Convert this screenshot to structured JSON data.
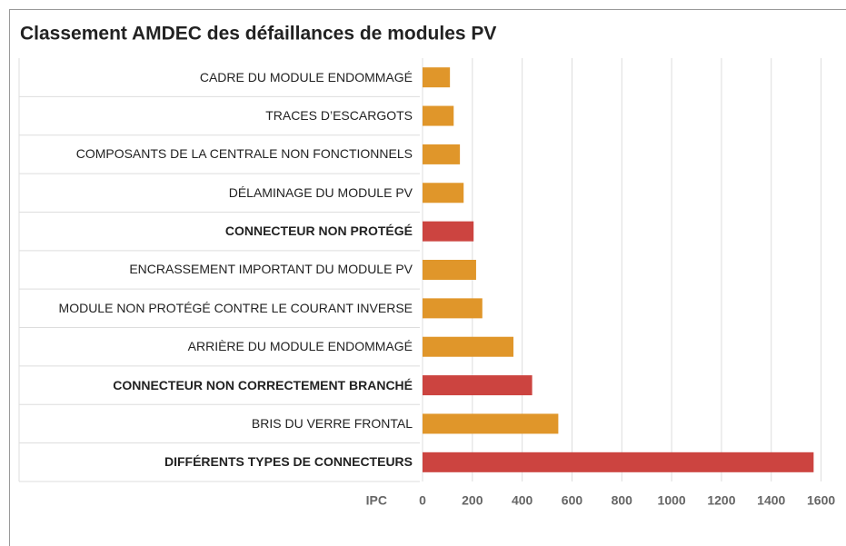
{
  "chart_data": {
    "type": "barh",
    "title": "Classement AMDEC des défaillances de modules PV",
    "categories": [
      "CADRE DU MODULE ENDOMMAGÉ",
      "TRACES D’ESCARGOTS",
      "COMPOSANTS DE LA CENTRALE NON FONCTIONNELS",
      "DÉLAMINAGE DU MODULE PV",
      "CONNECTEUR NON PROTÉGÉ",
      "ENCRASSEMENT IMPORTANT DU MODULE PV",
      "MODULE NON PROTÉGÉ CONTRE LE COURANT INVERSE",
      "ARRIÈRE DU MODULE ENDOMMAGÉ",
      "CONNECTEUR NON CORRECTEMENT BRANCHÉ",
      "BRIS DU VERRE FRONTAL",
      "DIFFÉRENTS TYPES DE CONNECTEURS"
    ],
    "values": [
      110,
      125,
      150,
      165,
      205,
      215,
      240,
      365,
      440,
      545,
      1570
    ],
    "colors": [
      "#e0962a",
      "#e0962a",
      "#e0962a",
      "#e0962a",
      "#cc4440",
      "#e0962a",
      "#e0962a",
      "#e0962a",
      "#cc4440",
      "#e0962a",
      "#cc4440"
    ],
    "highlight_color": "#cc4440",
    "x_label": "IPC",
    "xlim": [
      0,
      1700
    ],
    "xticks": [
      0,
      200,
      400,
      600,
      800,
      1000,
      1200,
      1400,
      1600
    ],
    "grid": true
  }
}
